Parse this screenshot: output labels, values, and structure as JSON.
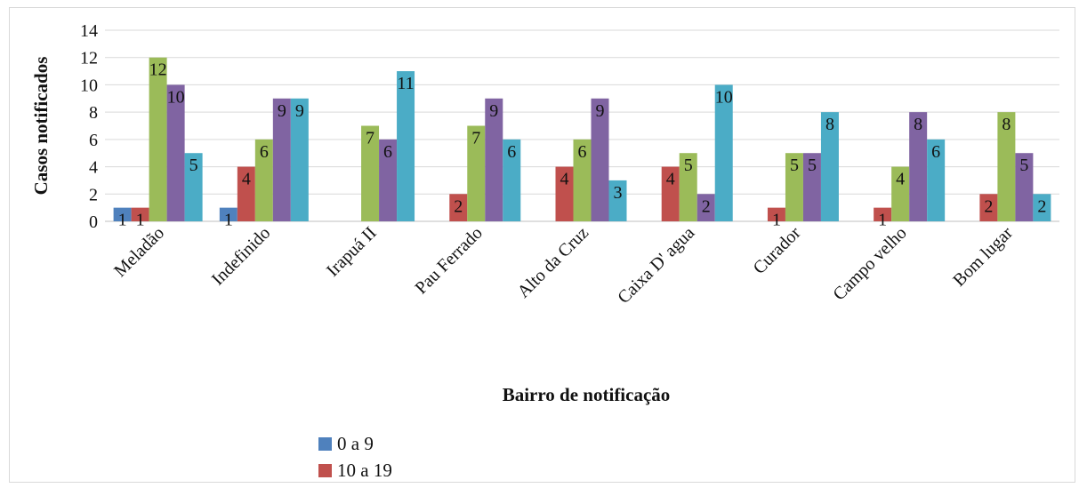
{
  "chart_data": {
    "type": "bar",
    "title": "",
    "xlabel": "Bairro de notificação",
    "ylabel": "Casos notificados",
    "ylim": [
      0,
      14
    ],
    "yticks": [
      0,
      2,
      4,
      6,
      8,
      10,
      12,
      14
    ],
    "grid": true,
    "categories": [
      "Meladão",
      "Indefinido",
      "Irapuá II",
      "Pau Ferrado",
      "Alto da Cruz",
      "Caixa D' agua",
      "Curador",
      "Campo velho",
      "Bom lugar"
    ],
    "series": [
      {
        "name": "0 a 9",
        "color": "#4f81bd",
        "values": [
          1,
          1,
          0,
          0,
          0,
          0,
          0,
          0,
          0
        ]
      },
      {
        "name": "10 a 19",
        "color": "#c0504d",
        "values": [
          1,
          4,
          0,
          2,
          4,
          4,
          1,
          1,
          2
        ]
      },
      {
        "name": "",
        "color": "#9bbb59",
        "values": [
          12,
          6,
          7,
          7,
          6,
          5,
          5,
          4,
          8
        ]
      },
      {
        "name": "",
        "color": "#8064a2",
        "values": [
          10,
          9,
          6,
          9,
          9,
          2,
          5,
          8,
          5
        ]
      },
      {
        "name": "",
        "color": "#4bacc6",
        "values": [
          5,
          9,
          11,
          6,
          3,
          10,
          8,
          6,
          2
        ]
      }
    ],
    "legend_position": "bottom"
  }
}
